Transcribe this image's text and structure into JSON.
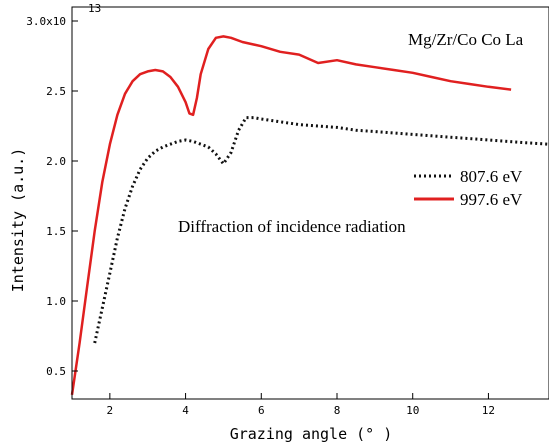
{
  "chart_data": {
    "type": "line",
    "xlabel": "Grazing angle (° )",
    "ylabel": "Intensity (a.u.)",
    "xlim": [
      1.0,
      13.6
    ],
    "ylim": [
      0.3,
      3.1
    ],
    "x_ticks": [
      2,
      4,
      6,
      8,
      10,
      12
    ],
    "y_ticks": [
      0.5,
      1.0,
      1.5,
      2.0,
      2.5,
      3.0
    ],
    "y_tick_labels": [
      "0.5",
      "1.0",
      "1.5",
      "2.0",
      "2.5",
      "3.0x10"
    ],
    "y_exponent": "13",
    "grid": false,
    "legend_position": "right",
    "annotations": {
      "top_right": "Mg/Zr/Co  Co La",
      "middle": "Diffraction of incidence radiation"
    },
    "series": [
      {
        "name": "807.6 eV",
        "color": "#111111",
        "style": "dotted",
        "x": [
          1.6,
          1.8,
          2.0,
          2.2,
          2.4,
          2.6,
          2.8,
          3.0,
          3.2,
          3.4,
          3.6,
          3.8,
          4.0,
          4.2,
          4.4,
          4.6,
          4.8,
          5.0,
          5.2,
          5.4,
          5.6,
          5.8,
          6.0,
          6.5,
          7.0,
          7.5,
          8.0,
          8.5,
          9.0,
          9.5,
          10.0,
          10.5,
          11.0,
          11.5,
          12.0,
          12.5,
          13.0,
          13.6
        ],
        "y": [
          0.7,
          0.95,
          1.2,
          1.45,
          1.66,
          1.82,
          1.94,
          2.02,
          2.07,
          2.1,
          2.12,
          2.14,
          2.15,
          2.14,
          2.12,
          2.1,
          2.05,
          1.98,
          2.06,
          2.22,
          2.31,
          2.31,
          2.3,
          2.28,
          2.26,
          2.25,
          2.24,
          2.22,
          2.21,
          2.2,
          2.19,
          2.18,
          2.17,
          2.16,
          2.15,
          2.14,
          2.13,
          2.12
        ]
      },
      {
        "name": "997.6 eV",
        "color": "#e02020",
        "style": "solid",
        "x": [
          1.0,
          1.2,
          1.4,
          1.6,
          1.8,
          2.0,
          2.2,
          2.4,
          2.6,
          2.8,
          3.0,
          3.2,
          3.4,
          3.6,
          3.8,
          4.0,
          4.1,
          4.2,
          4.3,
          4.4,
          4.6,
          4.8,
          5.0,
          5.2,
          5.5,
          6.0,
          6.5,
          7.0,
          7.5,
          8.0,
          8.5,
          9.0,
          9.5,
          10.0,
          10.5,
          11.0,
          11.5,
          12.0,
          12.6
        ],
        "y": [
          0.33,
          0.7,
          1.1,
          1.5,
          1.85,
          2.12,
          2.33,
          2.48,
          2.57,
          2.62,
          2.64,
          2.65,
          2.64,
          2.6,
          2.53,
          2.42,
          2.34,
          2.33,
          2.45,
          2.62,
          2.8,
          2.88,
          2.89,
          2.88,
          2.85,
          2.82,
          2.78,
          2.76,
          2.7,
          2.72,
          2.69,
          2.67,
          2.65,
          2.63,
          2.6,
          2.57,
          2.55,
          2.53,
          2.51
        ]
      }
    ]
  }
}
